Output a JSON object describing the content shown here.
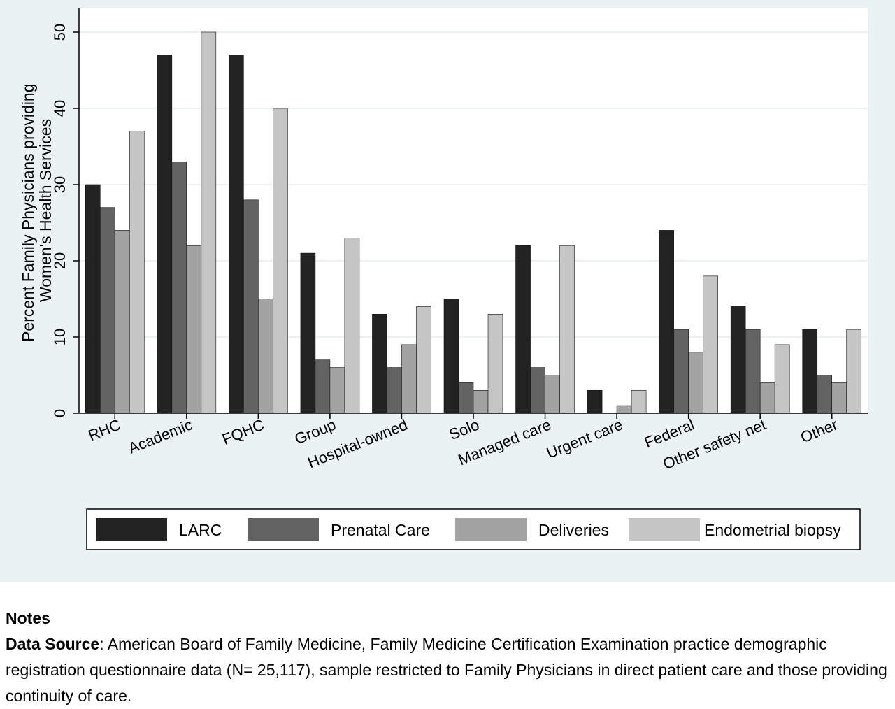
{
  "chart_data": {
    "type": "bar",
    "title": "",
    "xlabel": "",
    "ylabel": "Percent Family Physicians providing Women's Health Services",
    "ylabel_lines": [
      "Percent Family Physicians providing",
      "Women's Health Services"
    ],
    "ylim": [
      0,
      53
    ],
    "yticks": [
      0,
      10,
      20,
      30,
      40,
      50
    ],
    "grid": true,
    "legend_position": "bottom",
    "categories": [
      "RHC",
      "Academic",
      "FQHC",
      "Group",
      "Hospital-owned",
      "Solo",
      "Managed care",
      "Urgent care",
      "Federal",
      "Other safety net",
      "Other"
    ],
    "series": [
      {
        "name": "LARC",
        "color": "#222222",
        "values": [
          30,
          47,
          47,
          21,
          13,
          15,
          22,
          3,
          24,
          14,
          11
        ]
      },
      {
        "name": "Prenatal Care",
        "color": "#636363",
        "values": [
          27,
          33,
          28,
          7,
          6,
          4,
          6,
          0,
          11,
          11,
          5
        ]
      },
      {
        "name": "Deliveries",
        "color": "#a3a3a3",
        "values": [
          24,
          22,
          15,
          6,
          9,
          3,
          5,
          1,
          8,
          4,
          4
        ]
      },
      {
        "name": "Endometrial biopsy",
        "color": "#c5c5c5",
        "values": [
          37,
          50,
          40,
          23,
          14,
          13,
          22,
          3,
          18,
          9,
          11
        ]
      }
    ]
  },
  "notes": {
    "heading": "Notes",
    "source_label": "Data Source",
    "source_text": ": American Board of Family Medicine, Family Medicine Certification Examination practice demographic registration questionnaire data (N= 25,117), sample restricted to Family Physicians in direct patient care and those providing continuity of care."
  }
}
